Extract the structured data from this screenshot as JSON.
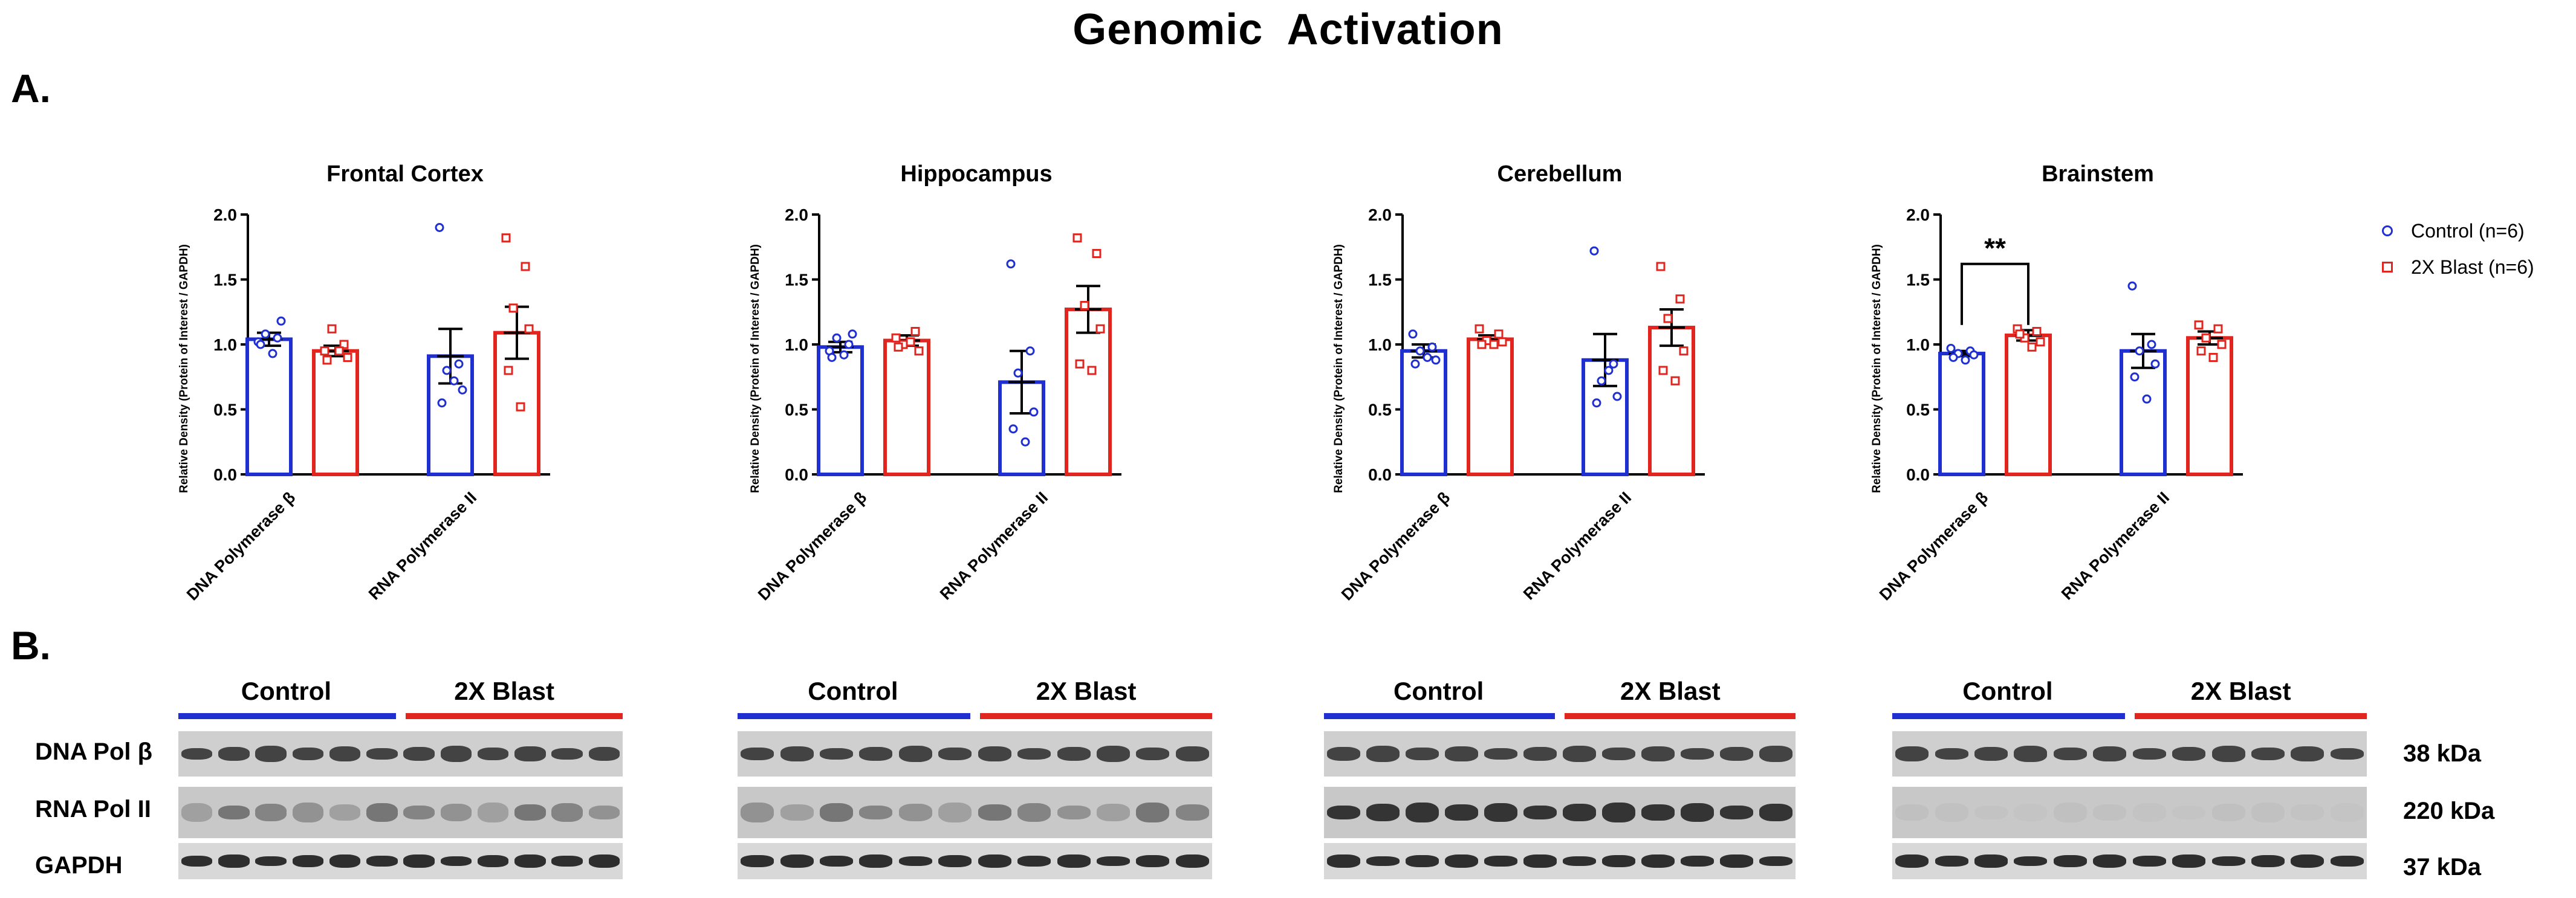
{
  "figure_title": "Genomic  Activation",
  "panel_a_label": "A.",
  "panel_b_label": "B.",
  "chart_data": [
    {
      "type": "bar",
      "title": "Frontal  Cortex",
      "ylabel": "Relative Density (Protein of  Interest / GAPDH)",
      "ylim": [
        0,
        2.0
      ],
      "yticks": [
        "0.0",
        "0.5",
        "1.0",
        "1.5",
        "2.0"
      ],
      "categories": [
        "DNA Polymerase β",
        "RNA Polymerase II"
      ],
      "series": [
        {
          "name": "Control (n=6)",
          "values": [
            1.04,
            0.91
          ],
          "sem": [
            0.05,
            0.21
          ],
          "points": [
            [
              1.02,
              1.05,
              1.08,
              1.18,
              1.0,
              0.93
            ],
            [
              1.9,
              0.85,
              0.8,
              0.65,
              0.55,
              0.72
            ]
          ]
        },
        {
          "name": "2X Blast (n=6)",
          "values": [
            0.95,
            1.09
          ],
          "sem": [
            0.04,
            0.2
          ],
          "points": [
            [
              0.95,
              1.0,
              1.12,
              0.9,
              0.88,
              0.95
            ],
            [
              1.82,
              1.6,
              1.28,
              1.12,
              0.8,
              0.52
            ]
          ]
        }
      ],
      "significance": []
    },
    {
      "type": "bar",
      "title": "Hippocampus",
      "ylabel": "Relative Density (Protein of  Interest / GAPDH)",
      "ylim": [
        0,
        2.0
      ],
      "yticks": [
        "0.0",
        "0.5",
        "1.0",
        "1.5",
        "2.0"
      ],
      "categories": [
        "DNA Polymerase β",
        "RNA Polymerase II"
      ],
      "series": [
        {
          "name": "Control (n=6)",
          "values": [
            0.98,
            0.71
          ],
          "sem": [
            0.04,
            0.24
          ],
          "points": [
            [
              0.95,
              1.0,
              1.05,
              1.08,
              0.9,
              0.92
            ],
            [
              1.62,
              0.95,
              0.78,
              0.48,
              0.35,
              0.25
            ]
          ]
        },
        {
          "name": "2X Blast (n=6)",
          "values": [
            1.03,
            1.27
          ],
          "sem": [
            0.04,
            0.18
          ],
          "points": [
            [
              1.05,
              1.1,
              1.0,
              0.95,
              0.98,
              1.02
            ],
            [
              1.82,
              1.7,
              1.3,
              1.12,
              0.85,
              0.8
            ]
          ]
        }
      ],
      "significance": []
    },
    {
      "type": "bar",
      "title": "Cerebellum",
      "ylabel": "Relative Density (Protein of  Interest / GAPDH)",
      "ylim": [
        0,
        2.0
      ],
      "yticks": [
        "0.0",
        "0.5",
        "1.0",
        "1.5",
        "2.0"
      ],
      "categories": [
        "DNA Polymerase β",
        "RNA Polymerase II"
      ],
      "series": [
        {
          "name": "Control (n=6)",
          "values": [
            0.95,
            0.88
          ],
          "sem": [
            0.05,
            0.2
          ],
          "points": [
            [
              1.08,
              0.98,
              0.95,
              0.88,
              0.85,
              0.9
            ],
            [
              1.72,
              0.85,
              0.72,
              0.6,
              0.55,
              0.8
            ]
          ]
        },
        {
          "name": "2X Blast (n=6)",
          "values": [
            1.04,
            1.13
          ],
          "sem": [
            0.03,
            0.14
          ],
          "points": [
            [
              1.12,
              1.08,
              1.03,
              1.02,
              1.0,
              1.0
            ],
            [
              1.6,
              1.35,
              1.2,
              0.95,
              0.8,
              0.72
            ]
          ]
        }
      ],
      "significance": []
    },
    {
      "type": "bar",
      "title": "Brainstem",
      "ylabel": "Relative Density (Protein of  Interest / GAPDH)",
      "ylim": [
        0,
        2.0
      ],
      "yticks": [
        "0.0",
        "0.5",
        "1.0",
        "1.5",
        "2.0"
      ],
      "categories": [
        "DNA Polymerase β",
        "RNA Polymerase II"
      ],
      "series": [
        {
          "name": "Control (n=6)",
          "values": [
            0.93,
            0.95
          ],
          "sem": [
            0.02,
            0.13
          ],
          "points": [
            [
              0.97,
              0.95,
              0.93,
              0.92,
              0.9,
              0.88
            ],
            [
              1.45,
              1.0,
              0.95,
              0.85,
              0.75,
              0.58
            ]
          ]
        },
        {
          "name": "2X Blast (n=6)",
          "values": [
            1.07,
            1.05
          ],
          "sem": [
            0.04,
            0.05
          ],
          "points": [
            [
              1.12,
              1.1,
              1.05,
              1.02,
              1.08,
              0.98
            ],
            [
              1.15,
              1.12,
              1.05,
              1.0,
              0.95,
              0.9
            ]
          ]
        }
      ],
      "significance": [
        {
          "category": "DNA Polymerase β",
          "label": "**"
        }
      ]
    }
  ],
  "legend": {
    "control": "Control (n=6)",
    "blast": "2X Blast (n=6)"
  },
  "blots": {
    "group_labels": {
      "control": "Control",
      "blast": "2X Blast"
    },
    "rows": [
      {
        "label": "DNA Pol β",
        "kda": "38 kDa"
      },
      {
        "label": "RNA Pol II",
        "kda": "220 kDa"
      },
      {
        "label": "GAPDH",
        "kda": "37 kDa"
      }
    ],
    "lanes_per_group": 6
  },
  "colors": {
    "control": "#1f2fd0",
    "blast": "#e0261f"
  }
}
